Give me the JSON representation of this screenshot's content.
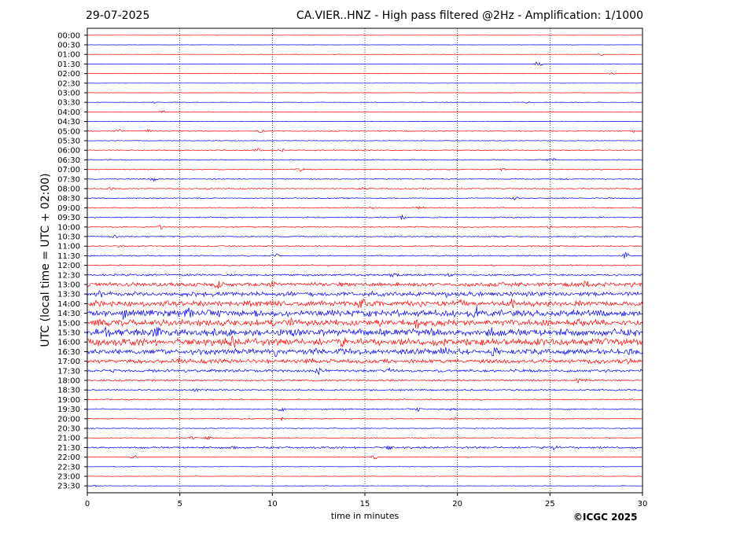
{
  "header": {
    "date": "29-07-2025",
    "title": "CA.VIER..HNZ - High pass filtered @2Hz - Amplification: 1/1000"
  },
  "footer": {
    "copyright": "©ICGC 2025"
  },
  "chart_data": {
    "type": "line",
    "xlabel": "time in minutes",
    "ylabel": "UTC (local time = UTC + 02:00)",
    "xlim": [
      0,
      30
    ],
    "x_ticks": [
      0,
      5,
      10,
      15,
      20,
      25,
      30
    ],
    "grid": "vertical dotted lines at 5-minute intervals",
    "series_colors": [
      "#ff0000",
      "#0000ff"
    ],
    "rows": [
      {
        "label": "00:00",
        "level": 0.15,
        "events": []
      },
      {
        "label": "00:30",
        "level": 0.15,
        "events": []
      },
      {
        "label": "01:00",
        "level": 0.2,
        "events": [
          {
            "x": 27.8,
            "amp": 2
          }
        ]
      },
      {
        "label": "01:30",
        "level": 0.2,
        "events": [
          {
            "x": 24.4,
            "amp": 5
          }
        ]
      },
      {
        "label": "02:00",
        "level": 0.2,
        "events": [
          {
            "x": 28.3,
            "amp": 2
          }
        ]
      },
      {
        "label": "02:30",
        "level": 0.15,
        "events": []
      },
      {
        "label": "03:00",
        "level": 0.2,
        "events": []
      },
      {
        "label": "03:30",
        "level": 0.25,
        "events": [
          {
            "x": 3.6,
            "amp": 1.5
          },
          {
            "x": 23.8,
            "amp": 1.5
          }
        ]
      },
      {
        "label": "04:00",
        "level": 0.25,
        "events": [
          {
            "x": 4.1,
            "amp": 2.5
          }
        ]
      },
      {
        "label": "04:30",
        "level": 0.25,
        "events": []
      },
      {
        "label": "05:00",
        "level": 0.45,
        "events": [
          {
            "x": 1.7,
            "amp": 2.5
          },
          {
            "x": 3.3,
            "amp": 3
          },
          {
            "x": 9.4,
            "amp": 2
          },
          {
            "x": 29.6,
            "amp": 2
          }
        ]
      },
      {
        "label": "05:30",
        "level": 0.35,
        "events": []
      },
      {
        "label": "06:00",
        "level": 0.5,
        "events": [
          {
            "x": 9.2,
            "amp": 3.5
          },
          {
            "x": 10.5,
            "amp": 2
          }
        ]
      },
      {
        "label": "06:30",
        "level": 0.5,
        "events": [
          {
            "x": 25.1,
            "amp": 3
          }
        ]
      },
      {
        "label": "07:00",
        "level": 0.5,
        "events": [
          {
            "x": 11.5,
            "amp": 2.5
          },
          {
            "x": 22.4,
            "amp": 2.5
          }
        ]
      },
      {
        "label": "07:30",
        "level": 0.5,
        "events": [
          {
            "x": 3.6,
            "amp": 3
          },
          {
            "x": 25.8,
            "amp": 2.5
          }
        ]
      },
      {
        "label": "08:00",
        "level": 0.5,
        "events": [
          {
            "x": 1.2,
            "amp": 2
          },
          {
            "x": 6.5,
            "amp": 2
          },
          {
            "x": 14.9,
            "amp": 2
          }
        ]
      },
      {
        "label": "08:30",
        "level": 0.5,
        "events": [
          {
            "x": 23.1,
            "amp": 3
          }
        ]
      },
      {
        "label": "09:00",
        "level": 0.5,
        "events": [
          {
            "x": 15.4,
            "amp": 2
          },
          {
            "x": 18.0,
            "amp": 2
          }
        ]
      },
      {
        "label": "09:30",
        "level": 0.6,
        "events": [
          {
            "x": 17.0,
            "amp": 5
          }
        ]
      },
      {
        "label": "10:00",
        "level": 0.6,
        "events": [
          {
            "x": 4.0,
            "amp": 3
          },
          {
            "x": 25.0,
            "amp": 2
          }
        ]
      },
      {
        "label": "10:30",
        "level": 0.6,
        "events": [
          {
            "x": 1.5,
            "amp": 2
          }
        ]
      },
      {
        "label": "11:00",
        "level": 0.6,
        "events": [
          {
            "x": 1.8,
            "amp": 2.5
          }
        ]
      },
      {
        "label": "11:30",
        "level": 0.6,
        "events": [
          {
            "x": 10.2,
            "amp": 3
          },
          {
            "x": 29.1,
            "amp": 5
          }
        ]
      },
      {
        "label": "12:00",
        "level": 0.6,
        "events": []
      },
      {
        "label": "12:30",
        "level": 1.0,
        "events": [
          {
            "x": 16.5,
            "amp": 3
          },
          {
            "x": 19.5,
            "amp": 3
          }
        ]
      },
      {
        "label": "13:00",
        "level": 2.0,
        "events": [
          {
            "x": 7.0,
            "amp": 4.5
          },
          {
            "x": 10.0,
            "amp": 4
          },
          {
            "x": 27.0,
            "amp": 4
          },
          {
            "x": 29.4,
            "amp": 5
          }
        ]
      },
      {
        "label": "13:30",
        "level": 2.2,
        "events": [
          {
            "x": 0.7,
            "amp": 4
          },
          {
            "x": 19.5,
            "amp": 4
          }
        ]
      },
      {
        "label": "14:00",
        "level": 2.8,
        "events": [
          {
            "x": 14.8,
            "amp": 5
          },
          {
            "x": 20.3,
            "amp": 5
          },
          {
            "x": 23.0,
            "amp": 4
          }
        ]
      },
      {
        "label": "14:30",
        "level": 3.2,
        "events": [
          {
            "x": 2.0,
            "amp": 5
          },
          {
            "x": 5.5,
            "amp": 5
          },
          {
            "x": 21.0,
            "amp": 5
          }
        ]
      },
      {
        "label": "15:00",
        "level": 3.2,
        "events": [
          {
            "x": 11.0,
            "amp": 5.5
          },
          {
            "x": 17.8,
            "amp": 5.5
          },
          {
            "x": 26.6,
            "amp": 5
          }
        ]
      },
      {
        "label": "15:30",
        "level": 3.5,
        "events": [
          {
            "x": 1.0,
            "amp": 6
          },
          {
            "x": 3.8,
            "amp": 6
          },
          {
            "x": 21.8,
            "amp": 6
          }
        ]
      },
      {
        "label": "16:00",
        "level": 3.4,
        "events": [
          {
            "x": 0.5,
            "amp": 5
          },
          {
            "x": 7.9,
            "amp": 5
          },
          {
            "x": 13.7,
            "amp": 5
          }
        ]
      },
      {
        "label": "16:30",
        "level": 2.8,
        "events": [
          {
            "x": 10.2,
            "amp": 5
          },
          {
            "x": 19.2,
            "amp": 4
          },
          {
            "x": 22.0,
            "amp": 5.5
          }
        ]
      },
      {
        "label": "17:00",
        "level": 2.0,
        "events": [
          {
            "x": 5.0,
            "amp": 4
          },
          {
            "x": 12.0,
            "amp": 4
          },
          {
            "x": 29.3,
            "amp": 4
          }
        ]
      },
      {
        "label": "17:30",
        "level": 1.4,
        "events": [
          {
            "x": 12.5,
            "amp": 4
          },
          {
            "x": 16.3,
            "amp": 3
          }
        ]
      },
      {
        "label": "18:00",
        "level": 0.9,
        "events": [
          {
            "x": 26.5,
            "amp": 3
          },
          {
            "x": 27.0,
            "amp": 2
          }
        ]
      },
      {
        "label": "18:30",
        "level": 0.8,
        "events": [
          {
            "x": 5.9,
            "amp": 2.5
          }
        ]
      },
      {
        "label": "19:00",
        "level": 0.6,
        "events": []
      },
      {
        "label": "19:30",
        "level": 0.6,
        "events": [
          {
            "x": 10.5,
            "amp": 4
          },
          {
            "x": 17.9,
            "amp": 2.5
          },
          {
            "x": 19.6,
            "amp": 2.5
          }
        ]
      },
      {
        "label": "20:00",
        "level": 0.4,
        "events": [
          {
            "x": 10.5,
            "amp": 2
          },
          {
            "x": 19.8,
            "amp": 3
          }
        ]
      },
      {
        "label": "20:30",
        "level": 0.4,
        "events": []
      },
      {
        "label": "21:00",
        "level": 0.45,
        "events": [
          {
            "x": 5.7,
            "amp": 2.5
          },
          {
            "x": 6.5,
            "amp": 2
          }
        ]
      },
      {
        "label": "21:30",
        "level": 1.0,
        "events": [
          {
            "x": 7.9,
            "amp": 3
          },
          {
            "x": 16.3,
            "amp": 3
          },
          {
            "x": 25.2,
            "amp": 3
          }
        ]
      },
      {
        "label": "22:00",
        "level": 0.3,
        "events": [
          {
            "x": 2.5,
            "amp": 3
          },
          {
            "x": 15.5,
            "amp": 3
          }
        ]
      },
      {
        "label": "22:30",
        "level": 0.25,
        "events": []
      },
      {
        "label": "23:00",
        "level": 0.25,
        "events": []
      },
      {
        "label": "23:30",
        "level": 0.3,
        "events": [
          {
            "x": 0.4,
            "amp": 1.5
          }
        ]
      }
    ]
  }
}
